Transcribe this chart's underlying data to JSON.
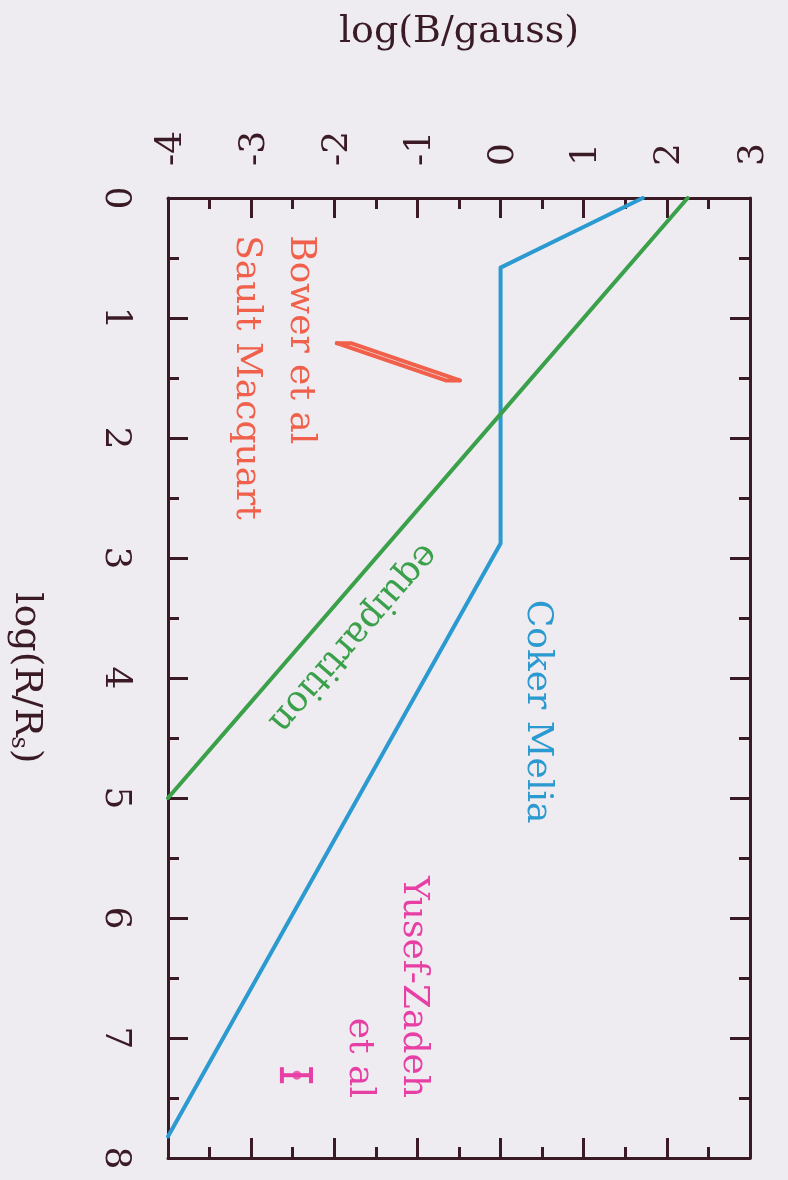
{
  "chart_data": {
    "type": "line",
    "xlabel": "log(B/gauss)",
    "ylabel": "log(R/R$_{s}$)",
    "xlim": [
      -4,
      3
    ],
    "xticks": [
      -4,
      {
        "value": -3.5,
        "label": null
      },
      -3,
      {
        "value": -2.5,
        "label": null
      },
      -2,
      {
        "value": -1.5,
        "label": null
      },
      -1,
      {
        "value": -0.5,
        "label": null
      },
      0,
      {
        "value": 0.5,
        "label": null
      },
      1,
      {
        "value": 1.5,
        "label": null
      },
      2,
      {
        "value": 2.5,
        "label": null
      },
      3
    ],
    "ylim": [
      8,
      0
    ],
    "yticks": [
      0,
      {
        "value": 0.5,
        "label": null
      },
      1,
      {
        "value": 1.5,
        "label": null
      },
      2,
      {
        "value": 2.5,
        "label": null
      },
      3,
      {
        "value": 3.5,
        "label": null
      },
      4,
      {
        "value": 4.5,
        "label": null
      },
      5,
      {
        "value": 5.5,
        "label": null
      },
      6,
      {
        "value": 6.5,
        "label": null
      },
      7,
      {
        "value": 7.5,
        "label": null
      },
      8
    ],
    "series": [
      {
        "name": "Coker Melia",
        "color": "#2b9ad0",
        "x": [
          1.71,
          0,
          0,
          -4
        ],
        "values": [
          0,
          0.58,
          2.88,
          7.82
        ]
      },
      {
        "name": "equipartition",
        "color": "#3aa04a",
        "x": [
          2.25,
          -4
        ],
        "values": [
          0,
          5
        ]
      },
      {
        "name": "Bower et al\nSault Macquart",
        "color": "#f0604a",
        "x": [
          -1.97,
          -1.8,
          -0.49
        ],
        "values": [
          1.21,
          1.21,
          1.52
        ]
      },
      {
        "color": "#f0604a",
        "x": [
          -1.97,
          -0.66,
          -0.49
        ],
        "values": [
          1.21,
          1.52,
          1.52
        ]
      },
      {
        "name": "Yusef-Zadeh\net al",
        "color": "#e83fa5",
        "type": "scatter",
        "marker": "circle",
        "x": [
          -2.45
        ],
        "values": [
          7.31
        ],
        "xerrors": [
          [
            -2.63,
            -2.28
          ]
        ]
      }
    ],
    "marker": "none",
    "line_style": "solid",
    "grid": false,
    "legend": false
  }
}
